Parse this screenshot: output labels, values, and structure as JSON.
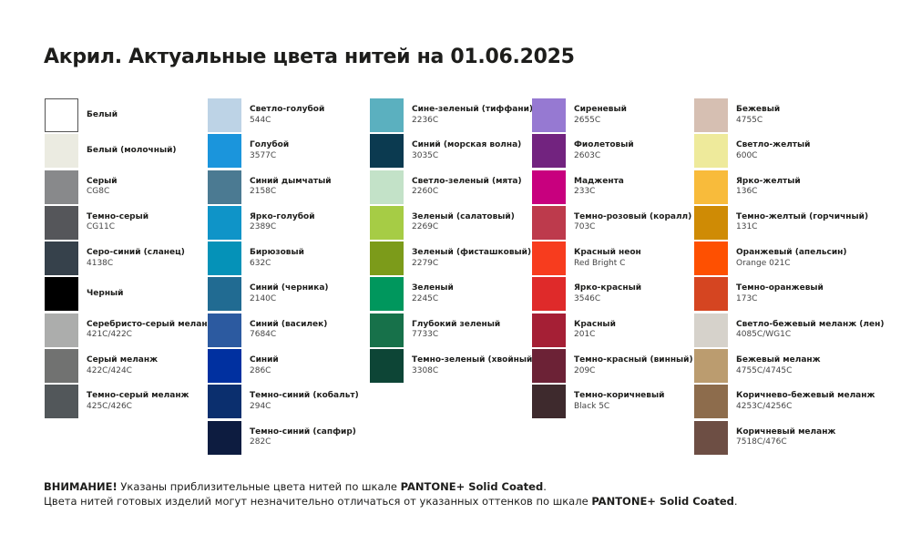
{
  "title": "Акрил. Актуальные цвета нитей на 01.06.2025",
  "columns": [
    [
      {
        "name": "Белый",
        "code": "",
        "color": "#ffffff"
      },
      {
        "name": "Белый (молочный)",
        "code": "",
        "color": "#ebebe1"
      },
      {
        "name": "Серый",
        "code": "CG8C",
        "color": "#88898b"
      },
      {
        "name": "Темно-серый",
        "code": "CG11C",
        "color": "#55565a"
      },
      {
        "name": "Серо-синий (сланец)",
        "code": "4138C",
        "color": "#36414b"
      },
      {
        "name": "Черный",
        "code": "",
        "color": "#000000"
      },
      {
        "name": "Серебристо-серый меланж",
        "code": "421C/422C",
        "color": "#acadac"
      },
      {
        "name": "Серый меланж",
        "code": "422C/424C",
        "color": "#717271"
      },
      {
        "name": "Темно-серый меланж",
        "code": "425C/426C",
        "color": "#52575a"
      }
    ],
    [
      {
        "name": "Светло-голубой",
        "code": "544C",
        "color": "#bdd3e6"
      },
      {
        "name": "Голубой",
        "code": "3577C",
        "color": "#1b95dc"
      },
      {
        "name": "Синий дымчатый",
        "code": "2158C",
        "color": "#4b7a92"
      },
      {
        "name": "Ярко-голубой",
        "code": "2389C",
        "color": "#0f94c8"
      },
      {
        "name": "Бирюзовый",
        "code": "632C",
        "color": "#0592b8"
      },
      {
        "name": "Синий (черника)",
        "code": "2140C",
        "color": "#216b92"
      },
      {
        "name": "Синий (василек)",
        "code": "7684C",
        "color": "#2c5aa0"
      },
      {
        "name": "Синий",
        "code": "286C",
        "color": "#0030a0"
      },
      {
        "name": "Темно-синий (кобальт)",
        "code": "294C",
        "color": "#0b2f6e"
      },
      {
        "name": "Темно-синий (сапфир)",
        "code": "282C",
        "color": "#0d1c40"
      }
    ],
    [
      {
        "name": "Сине-зеленый (тиффани)",
        "code": "2236C",
        "color": "#5bb0bf"
      },
      {
        "name": "Синий (морская волна)",
        "code": "3035C",
        "color": "#0b3a50"
      },
      {
        "name": "Светло-зеленый (мята)",
        "code": "2260C",
        "color": "#c3e2c8"
      },
      {
        "name": "Зеленый (салатовый)",
        "code": "2269C",
        "color": "#a6cc45"
      },
      {
        "name": "Зеленый (фисташковый)",
        "code": "2279C",
        "color": "#7c9b1a"
      },
      {
        "name": "Зеленый",
        "code": "2245C",
        "color": "#00975d"
      },
      {
        "name": "Глубокий зеленый",
        "code": "7733C",
        "color": "#17714a"
      },
      {
        "name": "Темно-зеленый (хвойный)",
        "code": "3308C",
        "color": "#0d4536"
      }
    ],
    [
      {
        "name": "Сиреневый",
        "code": "2655C",
        "color": "#9679d2"
      },
      {
        "name": "Фиолетовый",
        "code": "2603C",
        "color": "#72237f"
      },
      {
        "name": "Маджента",
        "code": "233C",
        "color": "#c8007e"
      },
      {
        "name": "Темно-розовый (коралл)",
        "code": "703C",
        "color": "#bd3a4c"
      },
      {
        "name": "Красный неон",
        "code": "Red Bright C",
        "color": "#f73c1e"
      },
      {
        "name": "Ярко-красный",
        "code": "3546C",
        "color": "#df2a2a"
      },
      {
        "name": "Красный",
        "code": "201C",
        "color": "#a51f35"
      },
      {
        "name": "Темно-красный (винный)",
        "code": "209C",
        "color": "#6c2236"
      },
      {
        "name": "Темно-коричневый",
        "code": "Black 5C",
        "color": "#3e2a2d"
      }
    ],
    [
      {
        "name": "Бежевый",
        "code": "4755C",
        "color": "#d6bfb2"
      },
      {
        "name": "Светло-желтый",
        "code": "600C",
        "color": "#eeea9b"
      },
      {
        "name": "Ярко-желтый",
        "code": "136C",
        "color": "#f8bb3b"
      },
      {
        "name": "Темно-желтый (горчичный)",
        "code": "131C",
        "color": "#cf8b05"
      },
      {
        "name": "Оранжевый (апельсин)",
        "code": "Orange 021C",
        "color": "#fe5001"
      },
      {
        "name": "Темно-оранжевый",
        "code": "173C",
        "color": "#d54521"
      },
      {
        "name": "Светло-бежевый меланж (лен)",
        "code": "4085C/WG1C",
        "color": "#d6d2cb"
      },
      {
        "name": "Бежевый меланж",
        "code": "4755C/4745C",
        "color": "#bb9c6f"
      },
      {
        "name": "Коричнево-бежевый меланж",
        "code": "4253C/4256C",
        "color": "#8d6c4c"
      },
      {
        "name": "Коричневый меланж",
        "code": "7518C/476C",
        "color": "#6d4e44"
      }
    ]
  ],
  "footer": {
    "line1_bold": "ВНИМАНИЕ!",
    "line1_text": " Указаны приблизительные цвета нитей по шкале ",
    "line1_scale": "PANTONE+ Solid Coated",
    "line1_end": ".",
    "line2_text": "Цвета нитей готовых изделий могут незначительно отличаться от указанных оттенков по шкале ",
    "line2_scale": "PANTONE+ Solid Coated",
    "line2_end": "."
  }
}
